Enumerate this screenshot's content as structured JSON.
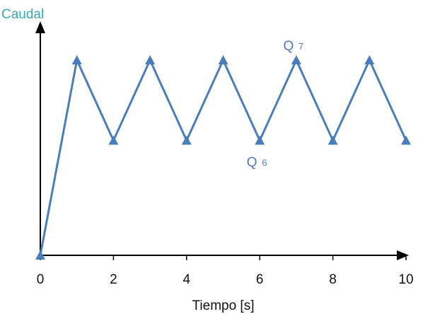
{
  "chart_data": {
    "type": "line",
    "xlabel": "Tiempo [s]",
    "ylabel": "Caudal",
    "xlim": [
      0,
      10
    ],
    "ylim": [
      0,
      1
    ],
    "x_ticks": [
      "0",
      "2",
      "4",
      "6",
      "8",
      "10"
    ],
    "grid": false,
    "series": [
      {
        "x": [
          0,
          1,
          2,
          3,
          4,
          5,
          6,
          7,
          8,
          9,
          10
        ],
        "y": [
          0,
          0.85,
          0.5,
          0.85,
          0.5,
          0.85,
          0.5,
          0.85,
          0.5,
          0.85,
          0.5
        ]
      }
    ],
    "annotations": [
      {
        "main": "Q",
        "sub": "7",
        "x": 7,
        "y": 0.85,
        "placement": "above"
      },
      {
        "main": "Q",
        "sub": "6",
        "x": 6,
        "y": 0.5,
        "placement": "below"
      }
    ],
    "colors": {
      "series": "#4a7ebb",
      "ylabel": "#3aa6b9",
      "annotation": "#4a7ebb",
      "axis": "#000000"
    }
  }
}
